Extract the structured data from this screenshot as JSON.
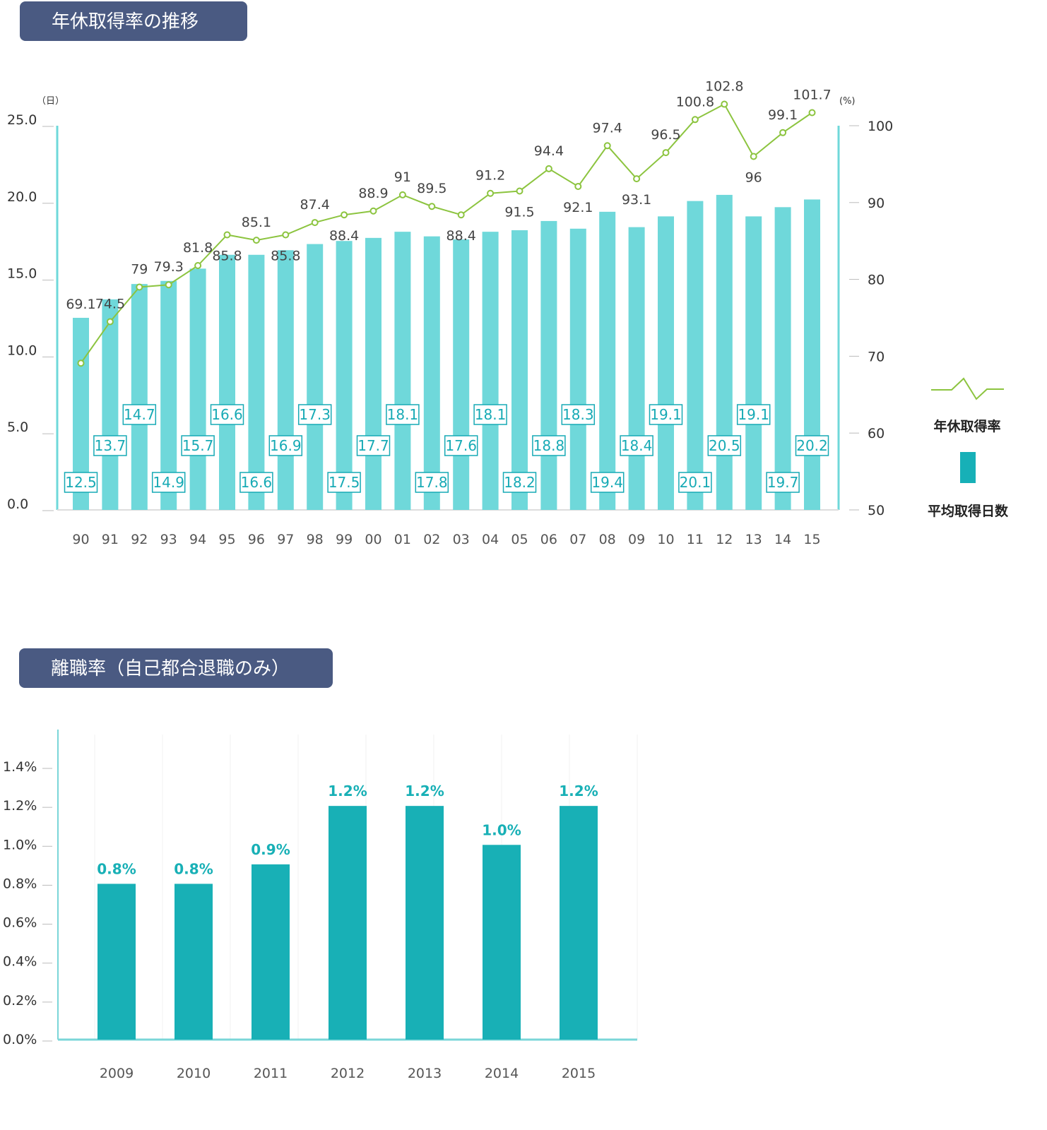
{
  "chart1": {
    "title": "年休取得率の推移",
    "left_unit": "（日）",
    "right_unit": "(%)",
    "left_ticks": [
      "25.0",
      "20.0",
      "15.0",
      "10.0",
      "5.0",
      "0.0"
    ],
    "right_ticks": [
      "100",
      "90",
      "80",
      "70",
      "60",
      "50"
    ],
    "legend": {
      "line_label": "年休取得率",
      "bar_label": "平均取得日数"
    },
    "colors": {
      "bar": "#6fd8da",
      "line": "#8cc43f",
      "axis": "#6fd8da",
      "box_text": "#17aab5"
    }
  },
  "chart2": {
    "title": "離職率（自己都合退職のみ）",
    "y_ticks": [
      "1.4%",
      "1.2%",
      "1.0%",
      "0.8%",
      "0.6%",
      "0.4%",
      "0.2%",
      "0.0%"
    ],
    "colors": {
      "bar": "#18b0b6",
      "label": "#18b0b6"
    }
  },
  "chart_data": [
    {
      "type": "bar",
      "title": "年休取得率の推移",
      "categories": [
        "90",
        "91",
        "92",
        "93",
        "94",
        "95",
        "96",
        "97",
        "98",
        "99",
        "00",
        "01",
        "02",
        "03",
        "04",
        "05",
        "06",
        "07",
        "08",
        "09",
        "10",
        "11",
        "12",
        "13",
        "14",
        "15"
      ],
      "y_left_range": [
        0,
        25
      ],
      "y_right_range": [
        50,
        100
      ],
      "y_left_label": "（日）",
      "y_right_label": "(%)",
      "series": [
        {
          "name": "平均取得日数",
          "type": "bar",
          "axis": "left",
          "values": [
            12.5,
            13.7,
            14.7,
            14.9,
            15.7,
            16.6,
            16.6,
            16.9,
            17.3,
            17.5,
            17.7,
            18.1,
            17.8,
            17.6,
            18.1,
            18.2,
            18.8,
            18.3,
            19.4,
            18.4,
            19.1,
            20.1,
            20.5,
            19.1,
            19.7,
            20.2
          ]
        },
        {
          "name": "年休取得率",
          "type": "line",
          "axis": "right",
          "values": [
            69.1,
            74.5,
            79,
            79.3,
            81.8,
            85.8,
            85.1,
            85.8,
            87.4,
            88.4,
            88.9,
            91,
            89.5,
            88.4,
            91.2,
            91.5,
            94.4,
            92.1,
            97.4,
            93.1,
            96.5,
            100.8,
            102.8,
            96,
            99.1,
            101.7
          ]
        }
      ],
      "legend": "right"
    },
    {
      "type": "bar",
      "title": "離職率（自己都合退職のみ）",
      "categories": [
        "2009",
        "2010",
        "2011",
        "2012",
        "2013",
        "2014",
        "2015"
      ],
      "values": [
        0.8,
        0.8,
        0.9,
        1.2,
        1.2,
        1.0,
        1.2
      ],
      "value_labels": [
        "0.8%",
        "0.8%",
        "0.9%",
        "1.2%",
        "1.2%",
        "1.0%",
        "1.2%"
      ],
      "ylim": [
        0,
        1.4
      ],
      "y_unit": "%"
    }
  ]
}
